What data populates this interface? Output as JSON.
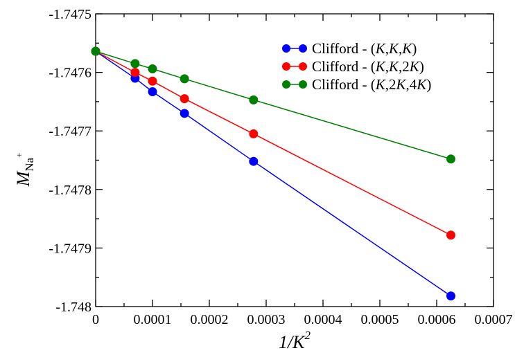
{
  "chart_data": {
    "type": "line",
    "xlabel_main": "1/K",
    "xlabel_sup": "2",
    "ylabel_main": "M",
    "ylabel_sub": "Na",
    "ylabel_sup": "+",
    "xlim": [
      0,
      0.0007
    ],
    "ylim": [
      -1.748,
      -1.7475
    ],
    "x_ticks": [
      {
        "value": 0,
        "label": "0"
      },
      {
        "value": 0.0001,
        "label": "0.0001"
      },
      {
        "value": 0.0002,
        "label": "0.0002"
      },
      {
        "value": 0.0003,
        "label": "0.0003"
      },
      {
        "value": 0.0004,
        "label": "0.0004"
      },
      {
        "value": 0.0005,
        "label": "0.0005"
      },
      {
        "value": 0.0006,
        "label": "0.0006"
      },
      {
        "value": 0.0007,
        "label": "0.0007"
      }
    ],
    "y_ticks": [
      {
        "value": -1.7475,
        "label": "-1.7475"
      },
      {
        "value": -1.7476,
        "label": "-1.7476"
      },
      {
        "value": -1.7477,
        "label": "-1.7477"
      },
      {
        "value": -1.7478,
        "label": "-1.7478"
      },
      {
        "value": -1.7479,
        "label": "-1.7479"
      },
      {
        "value": -1.748,
        "label": "-1.748"
      }
    ],
    "grid": false,
    "legend_position": "top-right",
    "series": [
      {
        "name": "Clifford - (K,K,K)",
        "legend_prefix": "Clifford - (",
        "legend_parts": [
          "K",
          ",",
          "K",
          ",",
          "K"
        ],
        "legend_suffix": ")",
        "color": "#0000ff",
        "x": [
          0,
          6.94e-05,
          0.0001,
          0.0001563,
          0.0002778,
          0.000625
        ],
        "y": [
          -1.747564,
          -1.74761,
          -1.747633,
          -1.74767,
          -1.747752,
          -1.747982
        ]
      },
      {
        "name": "Clifford - (K,K,2K)",
        "legend_prefix": "Clifford - (",
        "legend_parts": [
          "K",
          ",",
          "K",
          ",2",
          "K"
        ],
        "legend_suffix": ")",
        "color": "#ff0000",
        "x": [
          0,
          6.94e-05,
          0.0001,
          0.0001563,
          0.0002778,
          0.000625
        ],
        "y": [
          -1.747564,
          -1.7476,
          -1.747615,
          -1.747645,
          -1.747705,
          -1.747878
        ]
      },
      {
        "name": "Clifford - (K,2K,4K)",
        "legend_prefix": "Clifford - (",
        "legend_parts": [
          "K",
          ",2",
          "K",
          ",4",
          "K"
        ],
        "legend_suffix": ")",
        "color": "#008000",
        "x": [
          0,
          6.94e-05,
          0.0001,
          0.0001563,
          0.0002778,
          0.000625
        ],
        "y": [
          -1.747564,
          -1.747585,
          -1.747594,
          -1.747611,
          -1.747647,
          -1.747748
        ]
      }
    ]
  }
}
